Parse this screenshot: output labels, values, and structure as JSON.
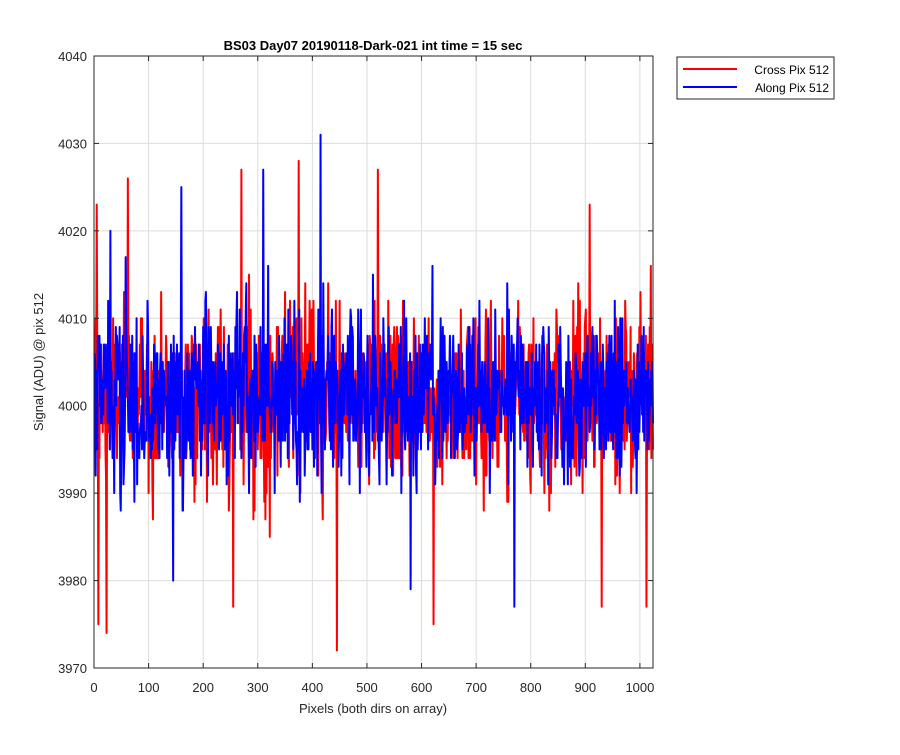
{
  "chart_data": {
    "type": "line",
    "title": "BS03 Day07 20190118-Dark-021 int time = 15 sec",
    "xlabel": "Pixels (both dirs on array)",
    "ylabel": "Signal (ADU) @ pix 512",
    "xlim": [
      0,
      1024
    ],
    "ylim": [
      3970,
      4040
    ],
    "xticks": [
      0,
      100,
      200,
      300,
      400,
      500,
      600,
      700,
      800,
      900,
      1000
    ],
    "yticks": [
      3970,
      3980,
      3990,
      4000,
      4010,
      4020,
      4030,
      4040
    ],
    "grid": true,
    "legend_position": "outside-top-right",
    "series": [
      {
        "name": "Cross Pix 512",
        "color": "#ff0000",
        "x_start": 1,
        "x_end": 1024,
        "baseline": 4001,
        "noise_sd": 5,
        "extremes": [
          {
            "x": 5,
            "y": 4023
          },
          {
            "x": 8,
            "y": 3975
          },
          {
            "x": 23,
            "y": 3974
          },
          {
            "x": 62,
            "y": 4026
          },
          {
            "x": 270,
            "y": 4027
          },
          {
            "x": 255,
            "y": 3977
          },
          {
            "x": 375,
            "y": 4028
          },
          {
            "x": 445,
            "y": 3972
          },
          {
            "x": 520,
            "y": 4027
          },
          {
            "x": 622,
            "y": 3975
          },
          {
            "x": 908,
            "y": 4023
          },
          {
            "x": 930,
            "y": 3977
          },
          {
            "x": 1012,
            "y": 3977
          },
          {
            "x": 1020,
            "y": 4016
          }
        ]
      },
      {
        "name": "Along Pix 512",
        "color": "#0000ff",
        "x_start": 1,
        "x_end": 1024,
        "baseline": 4001,
        "noise_sd": 5,
        "extremes": [
          {
            "x": 30,
            "y": 4020
          },
          {
            "x": 160,
            "y": 4025
          },
          {
            "x": 310,
            "y": 4027
          },
          {
            "x": 415,
            "y": 4031
          },
          {
            "x": 770,
            "y": 3977
          },
          {
            "x": 145,
            "y": 3980
          },
          {
            "x": 580,
            "y": 3979
          }
        ]
      }
    ]
  }
}
